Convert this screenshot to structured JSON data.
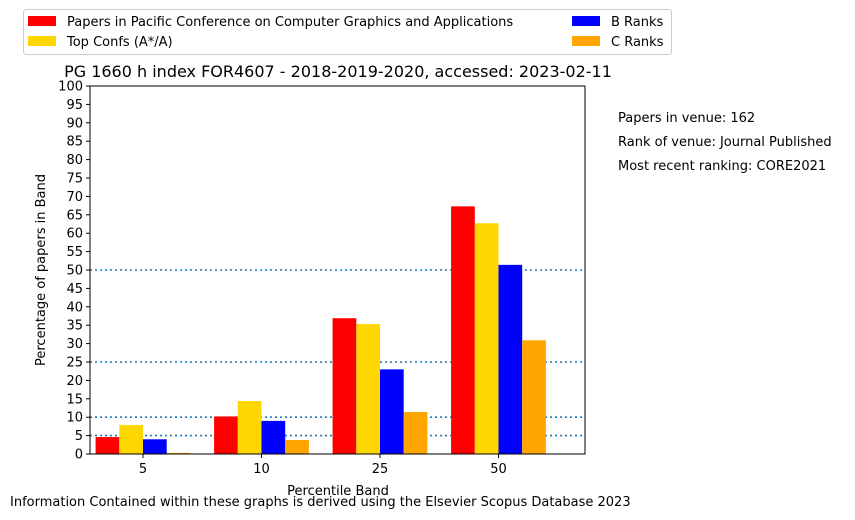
{
  "chart_data": {
    "type": "bar",
    "title": "PG 1660 h index FOR4607 - 2018-2019-2020, accessed: 2023-02-11",
    "xlabel": "Percentile Band",
    "ylabel": "Percentage of papers in Band",
    "categories": [
      "5",
      "10",
      "25",
      "50"
    ],
    "ylim": [
      0,
      100
    ],
    "yticks": [
      0,
      5,
      10,
      15,
      20,
      25,
      30,
      35,
      40,
      45,
      50,
      55,
      60,
      65,
      70,
      75,
      80,
      85,
      90,
      95,
      100
    ],
    "reference_lines": [
      5,
      10,
      25,
      50
    ],
    "grid": false,
    "legend_position": "top",
    "series": [
      {
        "name": "Papers in Pacific Conference on Computer Graphics and Applications",
        "color": "#ff0000",
        "values": [
          4.6,
          10.2,
          36.9,
          67.3
        ]
      },
      {
        "name": "Top Confs (A*/A)",
        "color": "#ffd700",
        "values": [
          7.9,
          14.4,
          35.3,
          62.7
        ]
      },
      {
        "name": "B Ranks",
        "color": "#0000ff",
        "values": [
          4.0,
          9.0,
          23.0,
          51.4
        ]
      },
      {
        "name": "C Ranks",
        "color": "#ffa500",
        "values": [
          0.3,
          3.8,
          11.4,
          30.9
        ]
      }
    ]
  },
  "side_notes": {
    "papers": "Papers in venue: 162",
    "rank": "Rank of venue: Journal Published",
    "ranking": "Most recent ranking: CORE2021"
  },
  "footer": "Information Contained within these graphs is derived using the Elsevier Scopus Database 2023",
  "reference_line_color": "#1f77b4"
}
